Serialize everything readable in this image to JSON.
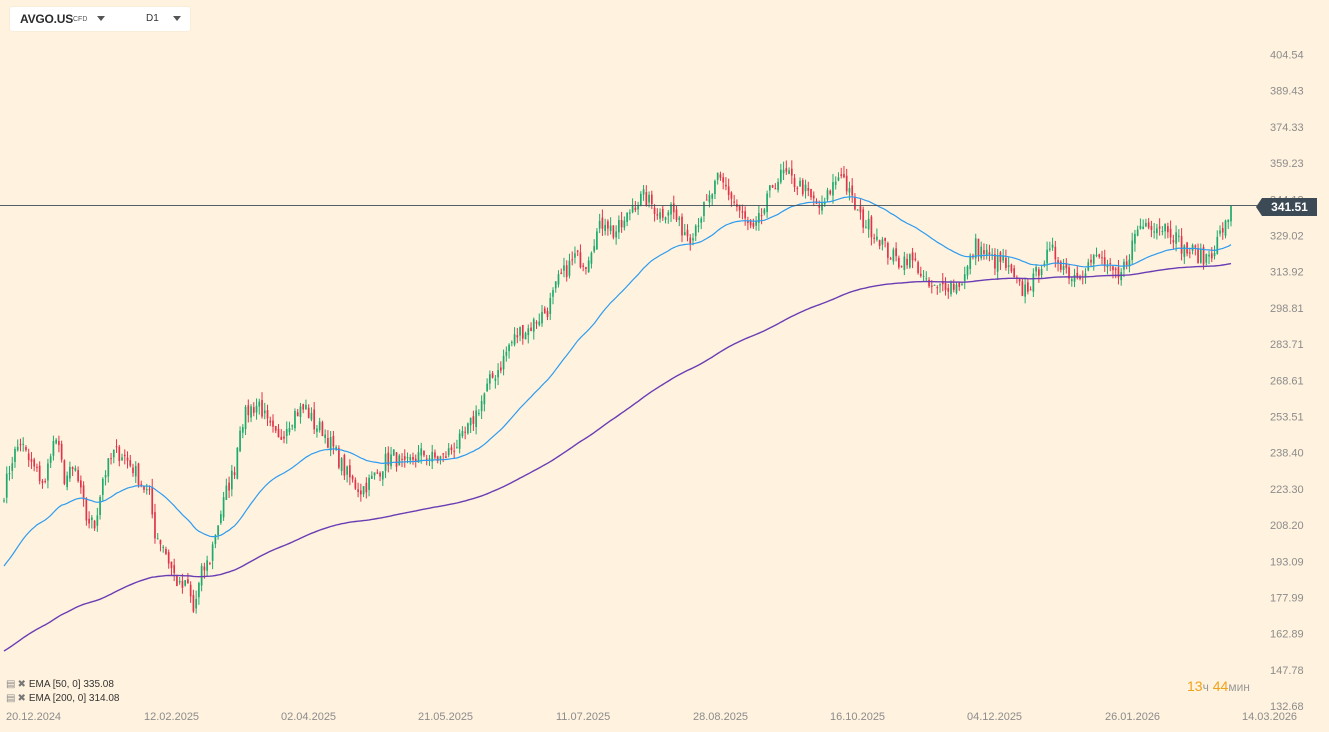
{
  "header": {
    "symbol": "AVGO.US",
    "instrument_type": "CFD",
    "timeframe": "D1"
  },
  "last_price": "341.51",
  "indicators": [
    {
      "label": "EMA",
      "params": "[50, 0]",
      "value": "335.08",
      "color": "#2d9cf0"
    },
    {
      "label": "EMA",
      "params": "[200, 0]",
      "value": "314.08",
      "color": "#6a3db5"
    }
  ],
  "timer": {
    "hours": "13",
    "hours_unit": "ч",
    "minutes": "44",
    "minutes_unit": "мин"
  },
  "colors": {
    "background": "#fff2de",
    "bull": "#1eaa6e",
    "bear": "#e0344a",
    "ema50": "#2d9cf0",
    "ema200": "#6a3db5",
    "price_tag": "#3b4a54"
  },
  "chart_data": {
    "type": "candlestick",
    "y_axis_ticks": [
      "404.54",
      "389.43",
      "374.33",
      "359.23",
      "344.12",
      "329.02",
      "313.92",
      "298.81",
      "283.71",
      "268.61",
      "253.51",
      "238.40",
      "223.30",
      "208.20",
      "193.09",
      "177.99",
      "162.89",
      "147.78",
      "132.68"
    ],
    "x_axis_ticks": [
      "20.12.2024",
      "12.02.2025",
      "02.04.2025",
      "21.05.2025",
      "11.07.2025",
      "28.08.2025",
      "16.10.2025",
      "04.12.2025",
      "26.01.2026",
      "14.03.2026"
    ],
    "ylim": [
      132.68,
      416
    ],
    "current_price": 341.51,
    "close_path": [
      [
        0,
        222
      ],
      [
        3,
        236
      ],
      [
        6,
        243
      ],
      [
        9,
        235
      ],
      [
        12,
        230
      ],
      [
        15,
        225
      ],
      [
        17,
        240
      ],
      [
        19,
        244
      ],
      [
        22,
        228
      ],
      [
        26,
        231
      ],
      [
        30,
        211
      ],
      [
        33,
        208
      ],
      [
        36,
        228
      ],
      [
        40,
        238
      ],
      [
        43,
        238
      ],
      [
        47,
        232
      ],
      [
        50,
        226
      ],
      [
        53,
        220
      ],
      [
        55,
        205
      ],
      [
        58,
        200
      ],
      [
        61,
        190
      ],
      [
        64,
        182
      ],
      [
        67,
        183
      ],
      [
        69,
        172
      ],
      [
        72,
        188
      ],
      [
        75,
        194
      ],
      [
        77,
        205
      ],
      [
        81,
        222
      ],
      [
        84,
        232
      ],
      [
        86,
        250
      ],
      [
        89,
        256
      ],
      [
        93,
        259
      ],
      [
        96,
        250
      ],
      [
        100,
        243
      ],
      [
        103,
        250
      ],
      [
        106,
        255
      ],
      [
        110,
        257
      ],
      [
        113,
        250
      ],
      [
        116,
        248
      ],
      [
        120,
        240
      ],
      [
        124,
        231
      ],
      [
        127,
        226
      ],
      [
        130,
        223
      ],
      [
        133,
        226
      ],
      [
        136,
        230
      ],
      [
        139,
        235
      ],
      [
        142,
        237
      ],
      [
        146,
        232
      ],
      [
        149,
        236
      ],
      [
        153,
        238
      ],
      [
        156,
        236
      ],
      [
        160,
        236
      ],
      [
        163,
        240
      ],
      [
        167,
        244
      ],
      [
        170,
        250
      ],
      [
        174,
        260
      ],
      [
        177,
        268
      ],
      [
        181,
        275
      ],
      [
        184,
        283
      ],
      [
        188,
        289
      ],
      [
        191,
        290
      ],
      [
        195,
        295
      ],
      [
        198,
        298
      ],
      [
        202,
        310
      ],
      [
        205,
        315
      ],
      [
        208,
        320
      ],
      [
        212,
        318
      ],
      [
        215,
        328
      ],
      [
        219,
        336
      ],
      [
        222,
        330
      ],
      [
        226,
        334
      ],
      [
        229,
        342
      ],
      [
        233,
        345
      ],
      [
        236,
        342
      ],
      [
        239,
        338
      ],
      [
        243,
        341
      ],
      [
        246,
        333
      ],
      [
        250,
        329
      ],
      [
        253,
        336
      ],
      [
        257,
        344
      ],
      [
        260,
        352
      ],
      [
        263,
        349
      ],
      [
        266,
        343
      ],
      [
        270,
        335
      ],
      [
        273,
        330
      ],
      [
        277,
        340
      ],
      [
        280,
        350
      ],
      [
        284,
        355
      ],
      [
        287,
        352
      ],
      [
        291,
        349
      ],
      [
        294,
        344
      ],
      [
        298,
        340
      ],
      [
        301,
        348
      ],
      [
        305,
        356
      ],
      [
        308,
        346
      ],
      [
        312,
        336
      ],
      [
        315,
        333
      ],
      [
        319,
        328
      ],
      [
        322,
        322
      ],
      [
        326,
        318
      ],
      [
        329,
        320
      ],
      [
        333,
        316
      ],
      [
        336,
        308
      ],
      [
        340,
        306
      ],
      [
        343,
        309
      ],
      [
        347,
        308
      ],
      [
        350,
        312
      ],
      [
        354,
        325
      ],
      [
        357,
        322
      ],
      [
        361,
        318
      ],
      [
        364,
        318
      ],
      [
        368,
        310
      ],
      [
        371,
        306
      ],
      [
        375,
        310
      ],
      [
        378,
        318
      ],
      [
        382,
        322
      ],
      [
        385,
        318
      ],
      [
        389,
        312
      ],
      [
        392,
        314
      ],
      [
        396,
        318
      ],
      [
        399,
        320
      ],
      [
        403,
        314
      ],
      [
        406,
        310
      ],
      [
        410,
        322
      ],
      [
        413,
        332
      ],
      [
        417,
        335
      ],
      [
        420,
        333
      ],
      [
        424,
        333
      ],
      [
        427,
        328
      ],
      [
        430,
        323
      ],
      [
        434,
        322
      ],
      [
        437,
        319
      ],
      [
        441,
        324
      ],
      [
        444,
        332
      ],
      [
        448,
        335
      ]
    ],
    "series": [
      {
        "name": "EMA [50, 0]",
        "last_value": 335.08
      },
      {
        "name": "EMA [200, 0]",
        "last_value": 314.08
      }
    ]
  }
}
